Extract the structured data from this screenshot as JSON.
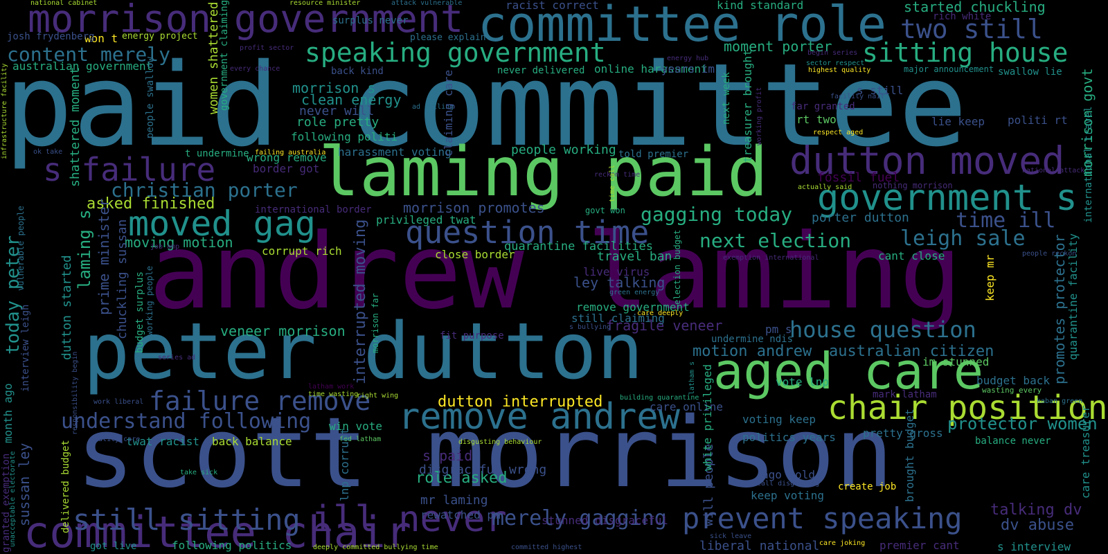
{
  "palette": {
    "purple": "#440154",
    "indigo": "#472c7a",
    "violet": "#3b518b",
    "blue": "#2c718e",
    "teal": "#21918c",
    "green": "#27ad81",
    "lime": "#5cc863",
    "yellowgreen": "#aadc32",
    "yellow": "#fde725"
  },
  "words": [
    {
      "text": "andrew laming",
      "size": 150,
      "color": "purple"
    },
    {
      "text": "paid committee",
      "size": 165,
      "color": "blue"
    },
    {
      "text": "scott morrison",
      "size": 140,
      "color": "violet"
    },
    {
      "text": "peter dutton",
      "size": 112,
      "color": "blue"
    },
    {
      "text": "laming paid",
      "size": 98,
      "color": "lime"
    },
    {
      "text": "committee role",
      "size": 70,
      "color": "blue"
    },
    {
      "text": "morrison government",
      "size": 55,
      "color": "indigo"
    },
    {
      "text": "aged care",
      "size": 72,
      "color": "lime"
    },
    {
      "text": "committee chair",
      "size": 62,
      "color": "indigo",
      "rot": true
    },
    {
      "text": "dutton moved",
      "size": 55,
      "color": "indigo"
    },
    {
      "text": "government s",
      "size": 52,
      "color": "teal"
    },
    {
      "text": "chair position",
      "size": 48,
      "color": "yellowgreen"
    },
    {
      "text": "remove andrew",
      "size": 52,
      "color": "blue"
    },
    {
      "text": "moved gag",
      "size": 50,
      "color": "teal"
    },
    {
      "text": "s failure",
      "size": 46,
      "color": "indigo"
    },
    {
      "text": "question time",
      "size": 45,
      "color": "violet"
    },
    {
      "text": "prevent speaking",
      "size": 42,
      "color": "violet"
    },
    {
      "text": "ill never",
      "size": 52,
      "color": "indigo"
    },
    {
      "text": "still sitting",
      "size": 42,
      "color": "violet"
    },
    {
      "text": "speaking government",
      "size": 38,
      "color": "green"
    },
    {
      "text": "sitting house",
      "size": 38,
      "color": "green"
    },
    {
      "text": "two still",
      "size": 38,
      "color": "violet"
    },
    {
      "text": "failure remove",
      "size": 38,
      "color": "violet"
    },
    {
      "text": "understand following",
      "size": 30,
      "color": "violet"
    },
    {
      "text": "merely gagging",
      "size": 30,
      "color": "violet"
    },
    {
      "text": "house question",
      "size": 32,
      "color": "blue"
    },
    {
      "text": "next election",
      "size": 28,
      "color": "green"
    },
    {
      "text": "leigh sale",
      "size": 30,
      "color": "blue"
    },
    {
      "text": "time ill",
      "size": 30,
      "color": "violet"
    },
    {
      "text": "gagging today",
      "size": 28,
      "color": "green"
    },
    {
      "text": "christian porter",
      "size": 28,
      "color": "blue"
    },
    {
      "text": "content merely",
      "size": 28,
      "color": "blue"
    },
    {
      "text": "dutton interrupted",
      "size": 22,
      "color": "yellow"
    },
    {
      "text": "protector women",
      "size": 24,
      "color": "teal"
    },
    {
      "text": "australian citizen",
      "size": 22,
      "color": "blue"
    },
    {
      "text": "motion andrew",
      "size": 22,
      "color": "blue"
    },
    {
      "text": "talking dv",
      "size": 22,
      "color": "indigo"
    },
    {
      "text": "dv abuse",
      "size": 22,
      "color": "violet"
    },
    {
      "text": "role asked",
      "size": 22,
      "color": "green"
    },
    {
      "text": "moving motion",
      "size": 20,
      "color": "green"
    },
    {
      "text": "asked finished",
      "size": 22,
      "color": "yellowgreen"
    },
    {
      "text": "morrison promotes",
      "size": 20,
      "color": "violet"
    },
    {
      "text": "fragile veneer",
      "size": 20,
      "color": "indigo"
    },
    {
      "text": "veneer morrison",
      "size": 20,
      "color": "green"
    },
    {
      "text": "quarantine facilities",
      "size": 17,
      "color": "green"
    },
    {
      "text": "travel ban",
      "size": 18,
      "color": "green"
    },
    {
      "text": "ley talking",
      "size": 20,
      "color": "violet"
    },
    {
      "text": "morrison s",
      "size": 20,
      "color": "teal"
    },
    {
      "text": "clean energy",
      "size": 20,
      "color": "teal"
    },
    {
      "text": "role pretty",
      "size": 18,
      "color": "green"
    },
    {
      "text": "never will",
      "size": 18,
      "color": "violet"
    },
    {
      "text": "following politi",
      "size": 16,
      "color": "green"
    },
    {
      "text": "people working",
      "size": 18,
      "color": "green"
    },
    {
      "text": "harassment voting",
      "size": 16,
      "color": "blue"
    },
    {
      "text": "wrong remove",
      "size": 16,
      "color": "green"
    },
    {
      "text": "border got",
      "size": 16,
      "color": "indigo"
    },
    {
      "text": "moment porter",
      "size": 20,
      "color": "green"
    },
    {
      "text": "started chuckling",
      "size": 20,
      "color": "green"
    },
    {
      "text": "australian government",
      "size": 16,
      "color": "green"
    },
    {
      "text": "never delivered",
      "size": 14,
      "color": "green"
    },
    {
      "text": "online harassment",
      "size": 16,
      "color": "green"
    },
    {
      "text": "porter dutton",
      "size": 18,
      "color": "blue"
    },
    {
      "text": "fossil fuel",
      "size": 18,
      "color": "purple"
    },
    {
      "text": "lie keep",
      "size": 16,
      "color": "violet"
    },
    {
      "text": "politi rt",
      "size": 16,
      "color": "violet"
    },
    {
      "text": "rt two",
      "size": 16,
      "color": "lime"
    },
    {
      "text": "far granted",
      "size": 14,
      "color": "indigo"
    },
    {
      "text": "s still",
      "size": 16,
      "color": "violet"
    },
    {
      "text": "swallow lie",
      "size": 14,
      "color": "teal"
    },
    {
      "text": "major announcement",
      "size": 12,
      "color": "teal"
    },
    {
      "text": "years im",
      "size": 16,
      "color": "violet"
    },
    {
      "text": "surplus never",
      "size": 14,
      "color": "blue"
    },
    {
      "text": "please explain",
      "size": 13,
      "color": "blue"
    },
    {
      "text": "racist correct",
      "size": 16,
      "color": "violet"
    },
    {
      "text": "kind standard",
      "size": 16,
      "color": "green"
    },
    {
      "text": "won t",
      "size": 16,
      "color": "yellow"
    },
    {
      "text": "energy project",
      "size": 13,
      "color": "yellowgreen"
    },
    {
      "text": "josh frydenberg",
      "size": 14,
      "color": "violet"
    },
    {
      "text": "back kind",
      "size": 14,
      "color": "violet"
    },
    {
      "text": "told premier",
      "size": 14,
      "color": "blue"
    },
    {
      "text": "corrupt rich",
      "size": 16,
      "color": "yellowgreen"
    },
    {
      "text": "close border",
      "size": 16,
      "color": "yellowgreen"
    },
    {
      "text": "privileged twat",
      "size": 16,
      "color": "green"
    },
    {
      "text": "international border",
      "size": 14,
      "color": "indigo"
    },
    {
      "text": "live virus",
      "size": 16,
      "color": "indigo"
    },
    {
      "text": "remove government",
      "size": 16,
      "color": "green"
    },
    {
      "text": "still claiming",
      "size": 16,
      "color": "blue"
    },
    {
      "text": "pm s",
      "size": 16,
      "color": "violet"
    },
    {
      "text": "undermine ndis",
      "size": 14,
      "color": "blue"
    },
    {
      "text": "fit purpose",
      "size": 14,
      "color": "indigo"
    },
    {
      "text": "cant close",
      "size": 16,
      "color": "green"
    },
    {
      "text": "im stunned",
      "size": 16,
      "color": "lime"
    },
    {
      "text": "budget back",
      "size": 16,
      "color": "blue"
    },
    {
      "text": "wasting every",
      "size": 11,
      "color": "lime"
    },
    {
      "text": "vote lnp",
      "size": 16,
      "color": "green"
    },
    {
      "text": "mark latham",
      "size": 14,
      "color": "indigo"
    },
    {
      "text": "care online",
      "size": 16,
      "color": "violet"
    },
    {
      "text": "voting keep",
      "size": 16,
      "color": "blue"
    },
    {
      "text": "politics years",
      "size": 16,
      "color": "blue"
    },
    {
      "text": "pretty gross",
      "size": 16,
      "color": "blue"
    },
    {
      "text": "balance never",
      "size": 14,
      "color": "green"
    },
    {
      "text": "win vote",
      "size": 16,
      "color": "green"
    },
    {
      "text": "twat racist",
      "size": 16,
      "color": "teal"
    },
    {
      "text": "back balance",
      "size": 16,
      "color": "yellowgreen"
    },
    {
      "text": "s paid",
      "size": 20,
      "color": "indigo"
    },
    {
      "text": "disgraceful wrong",
      "size": 18,
      "color": "violet"
    },
    {
      "text": "mr laming",
      "size": 18,
      "color": "violet"
    },
    {
      "text": "rewatched pm",
      "size": 16,
      "color": "violet"
    },
    {
      "text": "stunned disgraceful",
      "size": 16,
      "color": "indigo"
    },
    {
      "text": "ago told",
      "size": 16,
      "color": "violet"
    },
    {
      "text": "keep voting",
      "size": 16,
      "color": "blue"
    },
    {
      "text": "create job",
      "size": 14,
      "color": "yellow"
    },
    {
      "text": "liberal national",
      "size": 18,
      "color": "violet"
    },
    {
      "text": "premier cant",
      "size": 16,
      "color": "indigo"
    },
    {
      "text": "s interview",
      "size": 16,
      "color": "teal"
    },
    {
      "text": "following politics",
      "size": 16,
      "color": "green"
    },
    {
      "text": "got live",
      "size": 14,
      "color": "teal"
    },
    {
      "text": "deeply committed bullying time",
      "size": 10,
      "color": "yellowgreen"
    },
    {
      "text": "committed highest",
      "size": 10,
      "color": "violet"
    },
    {
      "text": "care joking",
      "size": 10,
      "color": "yellow"
    },
    {
      "text": "sick leave",
      "size": 10,
      "color": "violet"
    },
    {
      "text": "call disgusting",
      "size": 10,
      "color": "violet"
    },
    {
      "text": "take sick",
      "size": 10,
      "color": "green"
    },
    {
      "text": "quality care",
      "size": 10,
      "color": "violet"
    },
    {
      "text": "fed latham",
      "size": 10,
      "color": "lime"
    },
    {
      "text": "disgusting behaviour",
      "size": 10,
      "color": "yellowgreen"
    },
    {
      "text": "work liberal",
      "size": 10,
      "color": "violet"
    },
    {
      "text": "right wing",
      "size": 10,
      "color": "yellowgreen"
    },
    {
      "text": "time wasting",
      "size": 10,
      "color": "yellowgreen"
    },
    {
      "text": "latham work",
      "size": 10,
      "color": "purple"
    },
    {
      "text": "building quarantine",
      "size": 10,
      "color": "green"
    },
    {
      "text": "series ad",
      "size": 10,
      "color": "indigo"
    },
    {
      "text": "job amp",
      "size": 10,
      "color": "indigo"
    },
    {
      "text": "green energy",
      "size": 10,
      "color": "blue"
    },
    {
      "text": "care deeply",
      "size": 10,
      "color": "yellow"
    },
    {
      "text": "exemption international",
      "size": 10,
      "color": "indigo"
    },
    {
      "text": "people reckon",
      "size": 10,
      "color": "violet"
    },
    {
      "text": "s bullying",
      "size": 10,
      "color": "violet"
    },
    {
      "text": "reckon time",
      "size": 10,
      "color": "indigo"
    },
    {
      "text": "govt won",
      "size": 12,
      "color": "green"
    },
    {
      "text": "actually said",
      "size": 10,
      "color": "yellowgreen"
    },
    {
      "text": "nothing morrison",
      "size": 12,
      "color": "indigo"
    },
    {
      "text": "national attack",
      "size": 10,
      "color": "indigo"
    },
    {
      "text": "kaban green",
      "size": 10,
      "color": "blue"
    },
    {
      "text": "respect aged",
      "size": 10,
      "color": "yellow"
    },
    {
      "text": "facility naif",
      "size": 10,
      "color": "violet"
    },
    {
      "text": "highest quality",
      "size": 10,
      "color": "yellow"
    },
    {
      "text": "sector respect",
      "size": 10,
      "color": "teal"
    },
    {
      "text": "begin series",
      "size": 10,
      "color": "indigo"
    },
    {
      "text": "rich white",
      "size": 14,
      "color": "indigo"
    },
    {
      "text": "energy hub",
      "size": 10,
      "color": "indigo"
    },
    {
      "text": "every chance",
      "size": 10,
      "color": "indigo"
    },
    {
      "text": "profit sector",
      "size": 10,
      "color": "indigo"
    },
    {
      "text": "ad failing",
      "size": 10,
      "color": "blue"
    },
    {
      "text": "ok take",
      "size": 10,
      "color": "violet"
    },
    {
      "text": "t undermine",
      "size": 14,
      "color": "green"
    },
    {
      "text": "failing australia",
      "size": 10,
      "color": "yellow"
    },
    {
      "text": "national cabinet",
      "size": 10,
      "color": "yellowgreen"
    },
    {
      "text": "resource minister",
      "size": 10,
      "color": "yellowgreen"
    },
    {
      "text": "attack vulnerable",
      "size": 10,
      "color": "blue"
    },
    {
      "text": "people swallow",
      "size": 14,
      "color": "blue",
      "rot": true
    },
    {
      "text": "government claiming",
      "size": 14,
      "color": "green",
      "rot": true
    },
    {
      "text": "women shattered",
      "size": 18,
      "color": "yellowgreen",
      "rot": true
    },
    {
      "text": "shattered moment",
      "size": 18,
      "color": "green",
      "rot": true
    },
    {
      "text": "laming s",
      "size": 24,
      "color": "green",
      "rot": true
    },
    {
      "text": "prime minister",
      "size": 20,
      "color": "violet",
      "rot": true
    },
    {
      "text": "chuckling sussan",
      "size": 18,
      "color": "violet",
      "rot": true
    },
    {
      "text": "dutton started",
      "size": 18,
      "color": "teal",
      "rot": true
    },
    {
      "text": "budget surplus",
      "size": 14,
      "color": "green",
      "rot": true
    },
    {
      "text": "working people",
      "size": 12,
      "color": "blue",
      "rot": true
    },
    {
      "text": "today peter",
      "size": 26,
      "color": "teal",
      "rot": true
    },
    {
      "text": "interview leigh",
      "size": 14,
      "color": "violet",
      "rot": true
    },
    {
      "text": "vulnerable people",
      "size": 12,
      "color": "blue",
      "rot": true
    },
    {
      "text": "sussan ley",
      "size": 20,
      "color": "violet",
      "rot": true
    },
    {
      "text": "month ago",
      "size": 16,
      "color": "teal",
      "rot": true
    },
    {
      "text": "granted exemption",
      "size": 14,
      "color": "indigo",
      "rot": true
    },
    {
      "text": "delivered budget",
      "size": 14,
      "color": "yellowgreen",
      "rot": true
    },
    {
      "text": "responsibility begin",
      "size": 10,
      "color": "violet",
      "rot": true
    },
    {
      "text": "unacceptable electorate",
      "size": 10,
      "color": "teal",
      "rot": true
    },
    {
      "text": "infrastructure facility",
      "size": 10,
      "color": "yellowgreen",
      "rot": true
    },
    {
      "text": "claiming care",
      "size": 16,
      "color": "violet",
      "rot": true
    },
    {
      "text": "interrupted moving",
      "size": 22,
      "color": "violet",
      "rot": true
    },
    {
      "text": "lnp corrupt",
      "size": 16,
      "color": "blue",
      "rot": true
    },
    {
      "text": "morrison far",
      "size": 12,
      "color": "green",
      "rot": true
    },
    {
      "text": "time call",
      "size": 10,
      "color": "yellowgreen",
      "rot": true
    },
    {
      "text": "election budget",
      "size": 12,
      "color": "green",
      "rot": true
    },
    {
      "text": "will people",
      "size": 18,
      "color": "violet",
      "rot": true
    },
    {
      "text": "white privileged",
      "size": 16,
      "color": "green",
      "rot": true
    },
    {
      "text": "latham s",
      "size": 10,
      "color": "teal",
      "rot": true
    },
    {
      "text": "next week",
      "size": 14,
      "color": "green",
      "rot": true
    },
    {
      "text": "treasurer brought",
      "size": 16,
      "color": "green",
      "rot": true
    },
    {
      "text": "working profit",
      "size": 10,
      "color": "indigo",
      "rot": true
    },
    {
      "text": "keep mr",
      "size": 16,
      "color": "yellow",
      "rot": true
    },
    {
      "text": "brought budget",
      "size": 16,
      "color": "blue",
      "rot": true
    },
    {
      "text": "promotes protector",
      "size": 20,
      "color": "blue",
      "rot": true
    },
    {
      "text": "morrison govt",
      "size": 20,
      "color": "green",
      "rot": true
    },
    {
      "text": "quarantine facility",
      "size": 16,
      "color": "teal",
      "rot": true
    },
    {
      "text": "international travel",
      "size": 14,
      "color": "teal",
      "rot": true
    },
    {
      "text": "care treasurer",
      "size": 16,
      "color": "teal",
      "rot": true
    }
  ]
}
